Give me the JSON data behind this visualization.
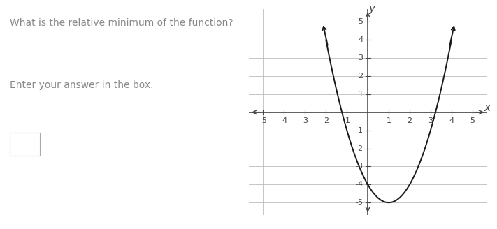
{
  "title_text": "What is the relative minimum of the function?",
  "subtitle_text": "Enter your answer in the box.",
  "question_text_color": "#888888",
  "bg_color": "#ffffff",
  "grid_bg_color": "#e8e8e8",
  "grid_color": "#bbbbbb",
  "axis_color": "#444444",
  "curve_color": "#1a1a1a",
  "xlim": [
    -5.7,
    5.7
  ],
  "ylim": [
    -5.7,
    5.7
  ],
  "xticks": [
    -5,
    -4,
    -3,
    -2,
    -1,
    1,
    2,
    3,
    4,
    5
  ],
  "yticks": [
    -5,
    -4,
    -3,
    -2,
    -1,
    1,
    2,
    3,
    4,
    5
  ],
  "curve_a": 1,
  "curve_b": -2,
  "curve_c": -4,
  "curve_lw": 1.4,
  "font_size_question": 10,
  "font_size_answer_label": 10,
  "font_size_tick": 8,
  "font_size_axis_label": 11
}
